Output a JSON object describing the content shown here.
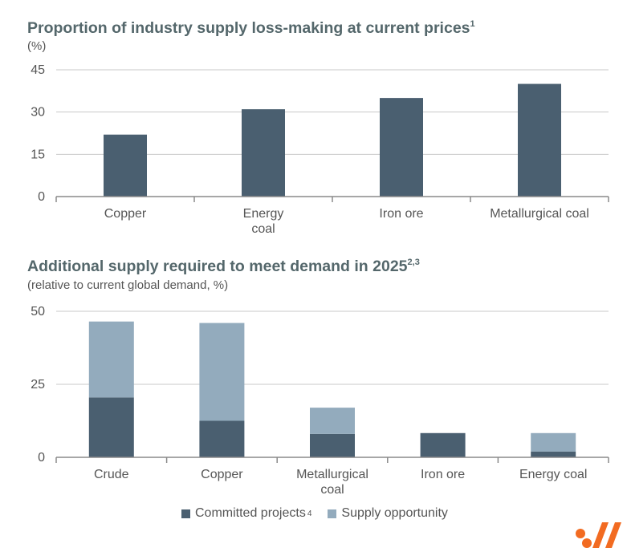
{
  "chart_data": [
    {
      "type": "bar",
      "title": "Proportion of industry supply loss-making at current prices",
      "title_sup": "1",
      "subtitle": "(%)",
      "categories": [
        "Copper",
        "Energy coal",
        "Iron ore",
        "Metallurgical coal"
      ],
      "category_lines": [
        [
          "Copper"
        ],
        [
          "Energy",
          "coal"
        ],
        [
          "Iron ore"
        ],
        [
          "Metallurgical coal"
        ]
      ],
      "values": [
        22,
        31,
        35,
        40
      ],
      "ylim": [
        0,
        45
      ],
      "yticks": [
        0,
        15,
        30,
        45
      ],
      "grid": true,
      "bar_color": "#4a5f70"
    },
    {
      "type": "bar",
      "stacked": true,
      "title": "Additional supply required to meet demand in 2025",
      "title_sup": "2,3",
      "subtitle": "(relative to current global demand, %)",
      "categories": [
        "Crude",
        "Copper",
        "Metallurgical coal",
        "Iron ore",
        "Energy coal"
      ],
      "category_lines": [
        [
          "Crude"
        ],
        [
          "Copper"
        ],
        [
          "Metallurgical",
          "coal"
        ],
        [
          "Iron ore"
        ],
        [
          "Energy coal"
        ]
      ],
      "series": [
        {
          "name": "Committed projects",
          "name_sup": "4",
          "values": [
            20.5,
            12.5,
            8,
            8.3,
            2
          ],
          "color": "#4a5f70"
        },
        {
          "name": "Supply opportunity",
          "values": [
            26,
            33.5,
            9,
            0,
            6.3
          ],
          "color": "#93abbd"
        }
      ],
      "ylim": [
        0,
        50
      ],
      "yticks": [
        0,
        25,
        50
      ],
      "grid": true,
      "legend_position": "bottom"
    }
  ],
  "logo": {
    "name": "bhp-logo",
    "color": "#f26b21"
  }
}
